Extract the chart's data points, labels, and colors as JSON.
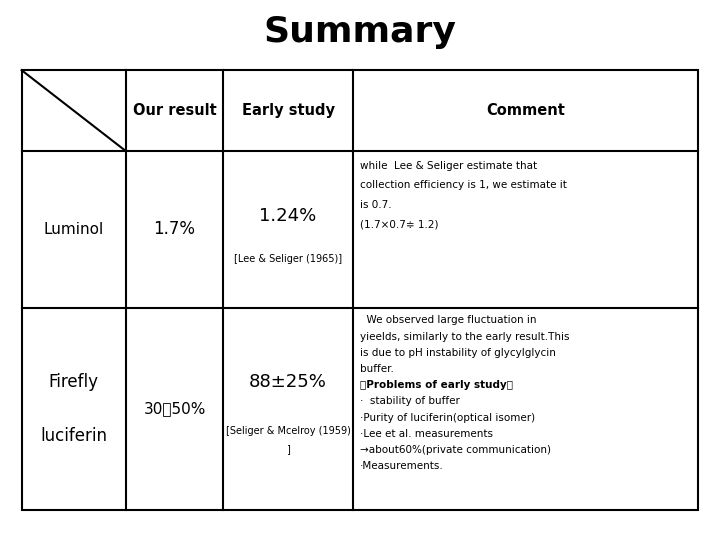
{
  "title": "Summary",
  "title_fontsize": 26,
  "background_color": "#ffffff",
  "col_boundaries": [
    0.03,
    0.175,
    0.31,
    0.49,
    0.97
  ],
  "row_boundaries": [
    0.87,
    0.72,
    0.43,
    0.055
  ],
  "header_labels": [
    "Our result",
    "Early study",
    "Comment"
  ],
  "row1_col0": "Luminol",
  "row1_col1": "1.7%",
  "row1_col2_main": "1.24%",
  "row1_col2_sub": "[Lee & Seliger (1965)]",
  "row1_col3_lines": [
    "while  Lee & Seliger estimate that",
    "collection efficiency is 1, we estimate it",
    "is 0.7.",
    "(1.7×0.7≑ 1.2)"
  ],
  "row2_col0_line1": "Firefly",
  "row2_col0_line2": "luciferin",
  "row2_col1": "30～50%",
  "row2_col2_main": "88±25%",
  "row2_col2_sub1": "[Seliger & Mcelroy (1959)",
  "row2_col2_sub2": "]",
  "row2_col3_lines": [
    [
      "  We observed large fluctuation in",
      "normal"
    ],
    [
      "yieelds, similarly to the early result.This",
      "normal"
    ],
    [
      "is due to pH instability of glycylglycin",
      "normal"
    ],
    [
      "buffer.",
      "normal"
    ],
    [
      "＜Problems of early study＞",
      "bold"
    ],
    [
      "·  stability of buffer",
      "normal"
    ],
    [
      "·Purity of luciferin(optical isomer)",
      "normal"
    ],
    [
      "·Lee et al. measurements",
      "normal"
    ],
    [
      "→about60%(private communication)",
      "normal"
    ],
    [
      "·Measurements.",
      "normal"
    ]
  ]
}
